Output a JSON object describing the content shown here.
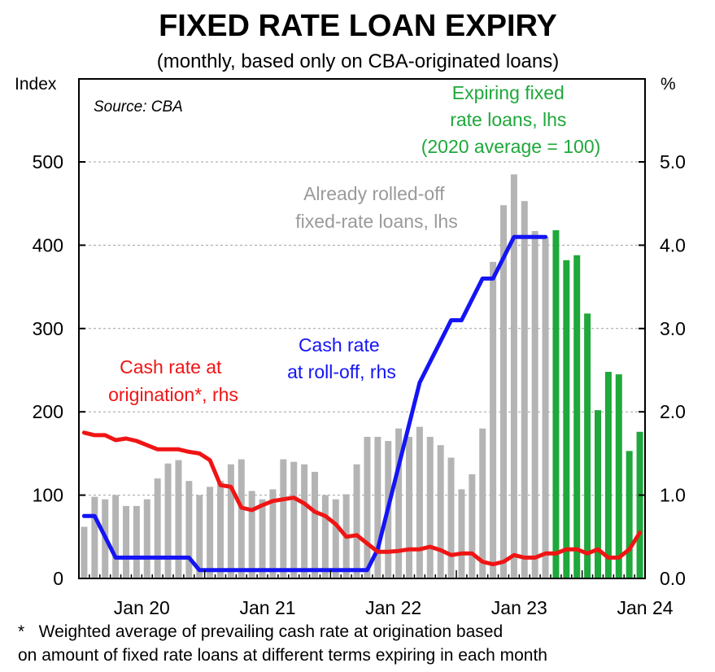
{
  "title": "FIXED RATE LOAN EXPIRY",
  "subtitle": "(monthly, based only on CBA-originated loans)",
  "left_unit": "Index",
  "right_unit": "%",
  "source": "Source: CBA",
  "annotations": {
    "expiring_lines": [
      "Expiring fixed",
      "rate loans, lhs",
      "(2020 average = 100)"
    ],
    "rolled_lines": [
      "Already rolled-off",
      "fixed-rate loans, lhs"
    ],
    "cash_roll_lines": [
      "Cash rate",
      "at roll-off, rhs"
    ],
    "cash_orig_lines": [
      "Cash rate at",
      "origination*, rhs"
    ]
  },
  "footnote_lines": [
    "*   Weighted average of prevailing cash rate at origination based",
    "on amount of fixed rate loans at different terms expiring in each month"
  ],
  "colors": {
    "rolled_off": "#b4b4b4",
    "expiring": "#1fa83b",
    "cash_rate_roll_off": "#1414f5",
    "cash_rate_origination": "#f01414",
    "annotation_green": "#1fa83b",
    "annotation_gray": "#9a9a9a"
  },
  "chart_data": {
    "type": "bar",
    "grid": true,
    "x_axis": {
      "start": "Jan 2020",
      "end": "Jun 2024",
      "tick_labels": [
        "Jan 20",
        "Jan 21",
        "Jan 22",
        "Jan 23",
        "Jan 24"
      ]
    },
    "y_left": {
      "label": "Index",
      "range": [
        0,
        500
      ],
      "ticks": [
        "0",
        "100",
        "200",
        "300",
        "400",
        "500"
      ]
    },
    "y_right": {
      "label": "%",
      "range": [
        0.0,
        5.0
      ],
      "ticks": [
        "0.0",
        "1.0",
        "2.0",
        "3.0",
        "4.0",
        "5.0"
      ]
    },
    "months": [
      "Jan 2020",
      "Feb 2020",
      "Mar 2020",
      "Apr 2020",
      "May 2020",
      "Jun 2020",
      "Jul 2020",
      "Aug 2020",
      "Sep 2020",
      "Oct 2020",
      "Nov 2020",
      "Dec 2020",
      "Jan 2021",
      "Feb 2021",
      "Mar 2021",
      "Apr 2021",
      "May 2021",
      "Jun 2021",
      "Jul 2021",
      "Aug 2021",
      "Sep 2021",
      "Oct 2021",
      "Nov 2021",
      "Dec 2021",
      "Jan 2022",
      "Feb 2022",
      "Mar 2022",
      "Apr 2022",
      "May 2022",
      "Jun 2022",
      "Jul 2022",
      "Aug 2022",
      "Sep 2022",
      "Oct 2022",
      "Nov 2022",
      "Dec 2022",
      "Jan 2023",
      "Feb 2023",
      "Mar 2023",
      "Apr 2023",
      "May 2023",
      "Jun 2023",
      "Jul 2023",
      "Aug 2023",
      "Sep 2023",
      "Oct 2023",
      "Nov 2023",
      "Dec 2023",
      "Jan 2024",
      "Feb 2024",
      "Mar 2024",
      "Apr 2024",
      "May 2024",
      "Jun 2024"
    ],
    "series": [
      {
        "name": "Already rolled-off fixed-rate loans, lhs",
        "type": "bar",
        "axis": "left",
        "values": [
          62,
          98,
          95,
          100,
          87,
          87,
          95,
          120,
          138,
          142,
          117,
          100,
          110,
          117,
          137,
          143,
          105,
          95,
          107,
          143,
          140,
          137,
          128,
          100,
          95,
          101,
          137,
          170,
          170,
          165,
          180,
          170,
          182,
          170,
          160,
          145,
          107,
          125,
          180,
          380,
          448,
          485,
          453,
          417,
          410,
          null,
          null,
          null,
          null,
          null,
          null,
          null,
          null,
          null
        ]
      },
      {
        "name": "Expiring fixed rate loans, lhs",
        "type": "bar",
        "axis": "left",
        "values": [
          null,
          null,
          null,
          null,
          null,
          null,
          null,
          null,
          null,
          null,
          null,
          null,
          null,
          null,
          null,
          null,
          null,
          null,
          null,
          null,
          null,
          null,
          null,
          null,
          null,
          null,
          null,
          null,
          null,
          null,
          null,
          null,
          null,
          null,
          null,
          null,
          null,
          null,
          null,
          null,
          null,
          null,
          null,
          null,
          null,
          418,
          382,
          388,
          318,
          202,
          248,
          245,
          153,
          176
        ]
      },
      {
        "name": "Cash rate at roll-off, rhs",
        "type": "line",
        "axis": "right",
        "values": [
          0.75,
          0.75,
          0.5,
          0.25,
          0.25,
          0.25,
          0.25,
          0.25,
          0.25,
          0.25,
          0.25,
          0.1,
          0.1,
          0.1,
          0.1,
          0.1,
          0.1,
          0.1,
          0.1,
          0.1,
          0.1,
          0.1,
          0.1,
          0.1,
          0.1,
          0.1,
          0.1,
          0.1,
          0.35,
          0.85,
          1.35,
          1.85,
          2.35,
          2.6,
          2.85,
          3.1,
          3.1,
          3.35,
          3.6,
          3.6,
          3.85,
          4.1,
          4.1,
          4.1,
          4.1,
          null,
          null,
          null,
          null,
          null,
          null,
          null,
          null,
          null
        ]
      },
      {
        "name": "Cash rate at origination*, rhs",
        "type": "line",
        "axis": "right",
        "values": [
          1.75,
          1.72,
          1.72,
          1.66,
          1.68,
          1.65,
          1.6,
          1.55,
          1.55,
          1.55,
          1.52,
          1.5,
          1.42,
          1.12,
          1.1,
          0.85,
          0.82,
          0.88,
          0.93,
          0.95,
          0.97,
          0.9,
          0.8,
          0.75,
          0.65,
          0.5,
          0.52,
          0.42,
          0.32,
          0.32,
          0.33,
          0.35,
          0.35,
          0.38,
          0.34,
          0.28,
          0.3,
          0.3,
          0.2,
          0.17,
          0.2,
          0.28,
          0.25,
          0.25,
          0.3,
          0.3,
          0.35,
          0.35,
          0.3,
          0.35,
          0.25,
          0.25,
          0.35,
          0.55
        ]
      }
    ]
  }
}
